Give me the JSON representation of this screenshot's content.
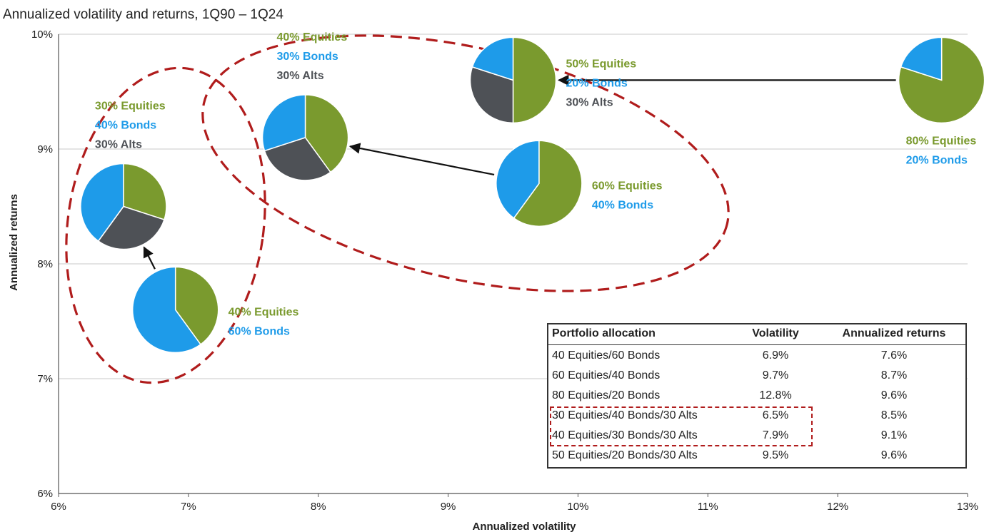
{
  "colors": {
    "equities": "#7a9a2e",
    "bonds": "#1e9be9",
    "alts": "#4e5156",
    "highlight": "#b01c1c"
  },
  "chart_data": {
    "type": "scatter",
    "title": "Annualized volatility and returns, 1Q90 – 1Q24",
    "xlabel": "Annualized volatility",
    "ylabel": "Annualized returns",
    "xlim": [
      6,
      13
    ],
    "ylim": [
      6,
      10
    ],
    "x_ticks": [
      "6%",
      "7%",
      "8%",
      "9%",
      "10%",
      "11%",
      "12%",
      "13%"
    ],
    "y_ticks": [
      "6%",
      "7%",
      "8%",
      "9%",
      "10%"
    ],
    "grid": "horizontal",
    "points": [
      {
        "id": "p40-60",
        "x": 6.9,
        "y": 7.6,
        "equities": 40,
        "bonds": 60,
        "alts": 0,
        "labels": [
          "40% Equities",
          "60% Bonds"
        ]
      },
      {
        "id": "p60-40",
        "x": 9.7,
        "y": 8.7,
        "equities": 60,
        "bonds": 40,
        "alts": 0,
        "labels": [
          "60% Equities",
          "40% Bonds"
        ]
      },
      {
        "id": "p80-20",
        "x": 12.8,
        "y": 9.6,
        "equities": 80,
        "bonds": 20,
        "alts": 0,
        "labels": [
          "80% Equities",
          "20% Bonds"
        ]
      },
      {
        "id": "p30-40-30",
        "x": 6.5,
        "y": 8.5,
        "equities": 30,
        "bonds": 40,
        "alts": 30,
        "labels": [
          "30% Equities",
          "40% Bonds",
          "30% Alts"
        ]
      },
      {
        "id": "p40-30-30",
        "x": 7.9,
        "y": 9.1,
        "equities": 40,
        "bonds": 30,
        "alts": 30,
        "labels": [
          "40% Equities",
          "30% Bonds",
          "30% Alts"
        ]
      },
      {
        "id": "p50-20-30",
        "x": 9.5,
        "y": 9.6,
        "equities": 50,
        "bonds": 20,
        "alts": 30,
        "labels": [
          "50% Equities",
          "20% Bonds",
          "30% Alts"
        ]
      }
    ],
    "arrows": [
      {
        "from": "p40-60",
        "to": "p30-40-30"
      },
      {
        "from": "p60-40",
        "to": "p40-30-30"
      },
      {
        "from": "p80-20",
        "to": "p50-20-30"
      }
    ],
    "table": {
      "headers": [
        "Portfolio allocation",
        "Volatility",
        "Annualized returns"
      ],
      "rows": [
        [
          "40 Equities/60 Bonds",
          "6.9%",
          "7.6%"
        ],
        [
          "60 Equities/40 Bonds",
          "9.7%",
          "8.7%"
        ],
        [
          "80 Equities/20 Bonds",
          "12.8%",
          "9.6%"
        ],
        [
          "30 Equities/40 Bonds/30 Alts",
          "6.5%",
          "8.5%"
        ],
        [
          "40 Equities/30 Bonds/30 Alts",
          "7.9%",
          "9.1%"
        ],
        [
          "50 Equities/20 Bonds/30 Alts",
          "9.5%",
          "9.6%"
        ]
      ],
      "highlighted_rows": [
        3,
        4
      ]
    }
  }
}
